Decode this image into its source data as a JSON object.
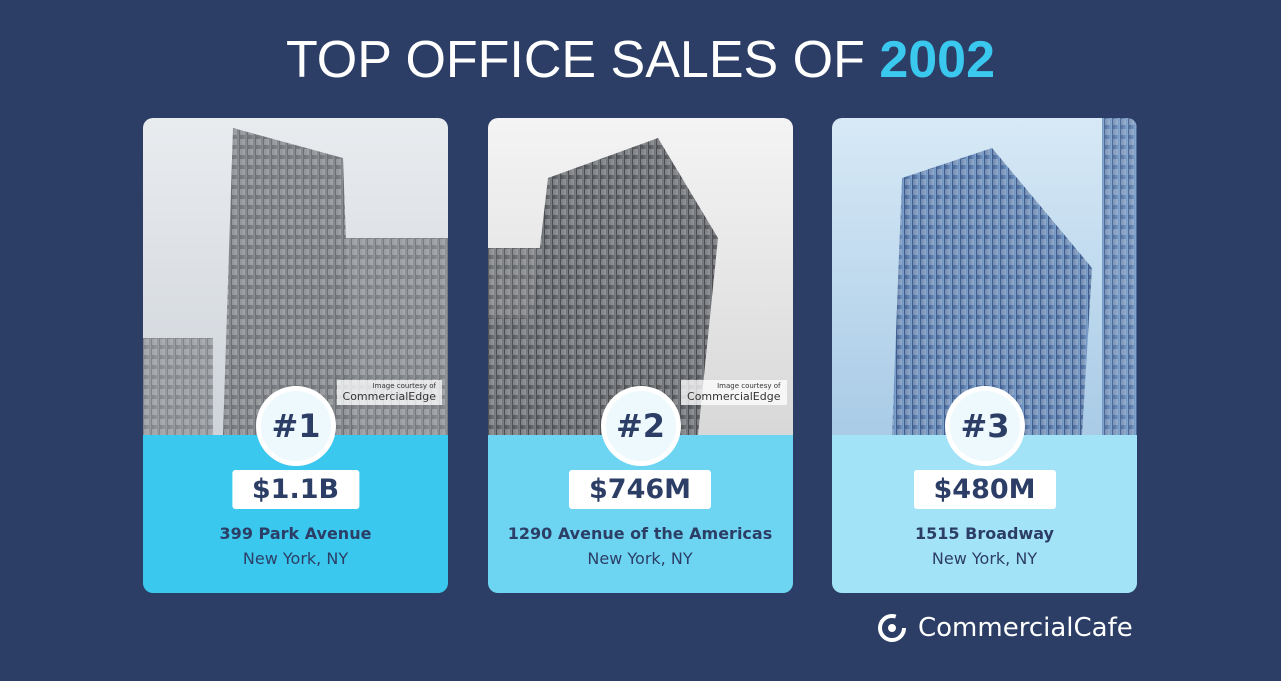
{
  "header": {
    "title": "TOP OFFICE SALES OF",
    "year": "2002"
  },
  "cards": [
    {
      "rank": "#1",
      "price": "$1.1B",
      "name": "399 Park Avenue",
      "location": "New York, NY",
      "credit": "Image courtesy of",
      "credit_brand": "CommercialEdge"
    },
    {
      "rank": "#2",
      "price": "$746M",
      "name": "1290 Avenue of the Americas",
      "location": "New York, NY",
      "credit": "Image courtesy of",
      "credit_brand": "CommercialEdge"
    },
    {
      "rank": "#3",
      "price": "$480M",
      "name": "1515 Broadway",
      "location": "New York, NY"
    }
  ],
  "footer": {
    "brand": "CommercialCafe"
  }
}
